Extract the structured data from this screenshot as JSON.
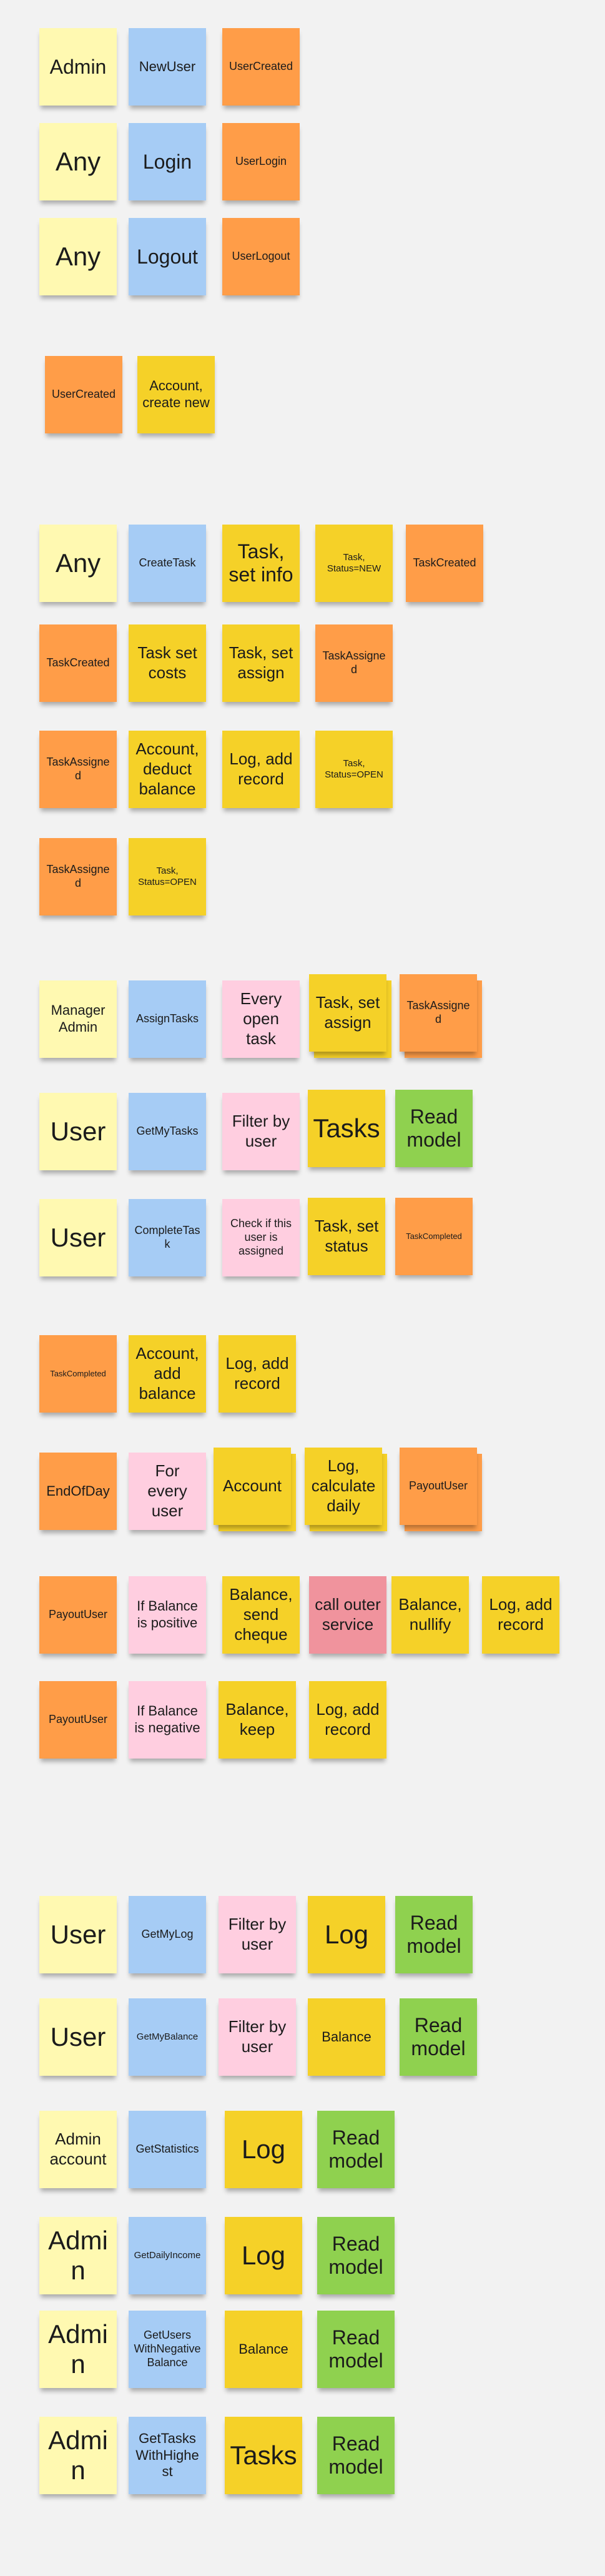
{
  "colors": {
    "actor": "#fff9b1",
    "command": "#a6ccf5",
    "event": "#ff9d48",
    "aggregate": "#f5d128",
    "policy": "#ffcee0",
    "read_model": "#8fd14f",
    "external_system": "#f0939d"
  },
  "notes": [
    {
      "text": "Admin",
      "color": "yellow-light"
    },
    {
      "text": "NewUser",
      "color": "blue"
    },
    {
      "text": "UserCreated",
      "color": "orange"
    },
    {
      "text": "Any",
      "color": "yellow-light"
    },
    {
      "text": "Login",
      "color": "blue"
    },
    {
      "text": "UserLogin",
      "color": "orange"
    },
    {
      "text": "Any",
      "color": "yellow-light"
    },
    {
      "text": "Logout",
      "color": "blue"
    },
    {
      "text": "UserLogout",
      "color": "orange"
    },
    {
      "text": "UserCreated",
      "color": "orange"
    },
    {
      "text": "Account, create new",
      "color": "yellow"
    },
    {
      "text": "Any",
      "color": "yellow-light"
    },
    {
      "text": "CreateTask",
      "color": "blue"
    },
    {
      "text": "Task, set info",
      "color": "yellow"
    },
    {
      "text": "Task, Status=NEW",
      "color": "yellow"
    },
    {
      "text": "TaskCreated",
      "color": "orange"
    },
    {
      "text": "TaskCreated",
      "color": "orange"
    },
    {
      "text": "Task set costs",
      "color": "yellow"
    },
    {
      "text": "Task, set assign",
      "color": "yellow"
    },
    {
      "text": "TaskAssigned",
      "color": "orange"
    },
    {
      "text": "TaskAssigned",
      "color": "orange"
    },
    {
      "text": "Account, deduct balance",
      "color": "yellow"
    },
    {
      "text": "Log, add record",
      "color": "yellow"
    },
    {
      "text": "Task, Status=OPEN",
      "color": "yellow"
    },
    {
      "text": "TaskAssigned",
      "color": "orange"
    },
    {
      "text": "Task, Status=OPEN",
      "color": "yellow"
    },
    {
      "text": "Manager Admin",
      "color": "yellow-light"
    },
    {
      "text": "AssignTasks",
      "color": "blue"
    },
    {
      "text": "Every open task",
      "color": "pink"
    },
    {
      "text": "Task, set assign",
      "color": "yellow"
    },
    {
      "text": "TaskAssigned",
      "color": "orange"
    },
    {
      "text": "User",
      "color": "yellow-light"
    },
    {
      "text": "GetMyTasks",
      "color": "blue"
    },
    {
      "text": "Filter by user",
      "color": "pink"
    },
    {
      "text": "Tasks",
      "color": "yellow"
    },
    {
      "text": "Read model",
      "color": "green"
    },
    {
      "text": "User",
      "color": "yellow-light"
    },
    {
      "text": "CompleteTask",
      "color": "blue"
    },
    {
      "text": "Check if this user is assigned",
      "color": "pink"
    },
    {
      "text": "Task, set status",
      "color": "yellow"
    },
    {
      "text": "TaskCompleted",
      "color": "orange"
    },
    {
      "text": "TaskCompleted",
      "color": "orange"
    },
    {
      "text": "Account, add balance",
      "color": "yellow"
    },
    {
      "text": "Log, add record",
      "color": "yellow"
    },
    {
      "text": "EndOfDay",
      "color": "orange"
    },
    {
      "text": "For every user",
      "color": "pink"
    },
    {
      "text": "Account",
      "color": "yellow"
    },
    {
      "text": "Log, calculate daily",
      "color": "yellow"
    },
    {
      "text": "PayoutUser",
      "color": "orange"
    },
    {
      "text": "PayoutUser",
      "color": "orange"
    },
    {
      "text": "If Balance is positive",
      "color": "pink"
    },
    {
      "text": "Balance, send cheque",
      "color": "yellow"
    },
    {
      "text": "call outer service",
      "color": "red"
    },
    {
      "text": "Balance, nullify",
      "color": "yellow"
    },
    {
      "text": "Log, add record",
      "color": "yellow"
    },
    {
      "text": "PayoutUser",
      "color": "orange"
    },
    {
      "text": "If Balance is negative",
      "color": "pink"
    },
    {
      "text": "Balance, keep",
      "color": "yellow"
    },
    {
      "text": "Log, add record",
      "color": "yellow"
    },
    {
      "text": "User",
      "color": "yellow-light"
    },
    {
      "text": "GetMyLog",
      "color": "blue"
    },
    {
      "text": "Filter by user",
      "color": "pink"
    },
    {
      "text": "Log",
      "color": "yellow"
    },
    {
      "text": "Read model",
      "color": "green"
    },
    {
      "text": "User",
      "color": "yellow-light"
    },
    {
      "text": "GetMyBalance",
      "color": "blue"
    },
    {
      "text": "Filter by user",
      "color": "pink"
    },
    {
      "text": "Balance",
      "color": "yellow"
    },
    {
      "text": "Read model",
      "color": "green"
    },
    {
      "text": "Admin account",
      "color": "yellow-light"
    },
    {
      "text": "GetStatistics",
      "color": "blue"
    },
    {
      "text": "Log",
      "color": "yellow"
    },
    {
      "text": "Read model",
      "color": "green"
    },
    {
      "text": "Admin",
      "color": "yellow-light"
    },
    {
      "text": "GetDailyIncome",
      "color": "blue"
    },
    {
      "text": "Log",
      "color": "yellow"
    },
    {
      "text": "Read model",
      "color": "green"
    },
    {
      "text": "Admin",
      "color": "yellow-light"
    },
    {
      "text": "GetUsers WithNegativeBalance",
      "color": "blue"
    },
    {
      "text": "Balance",
      "color": "yellow"
    },
    {
      "text": "Read model",
      "color": "green"
    },
    {
      "text": "Admin",
      "color": "yellow-light"
    },
    {
      "text": "GetTasksWithHighest",
      "color": "blue"
    },
    {
      "text": "Tasks",
      "color": "yellow"
    },
    {
      "text": "Read model",
      "color": "green"
    }
  ]
}
